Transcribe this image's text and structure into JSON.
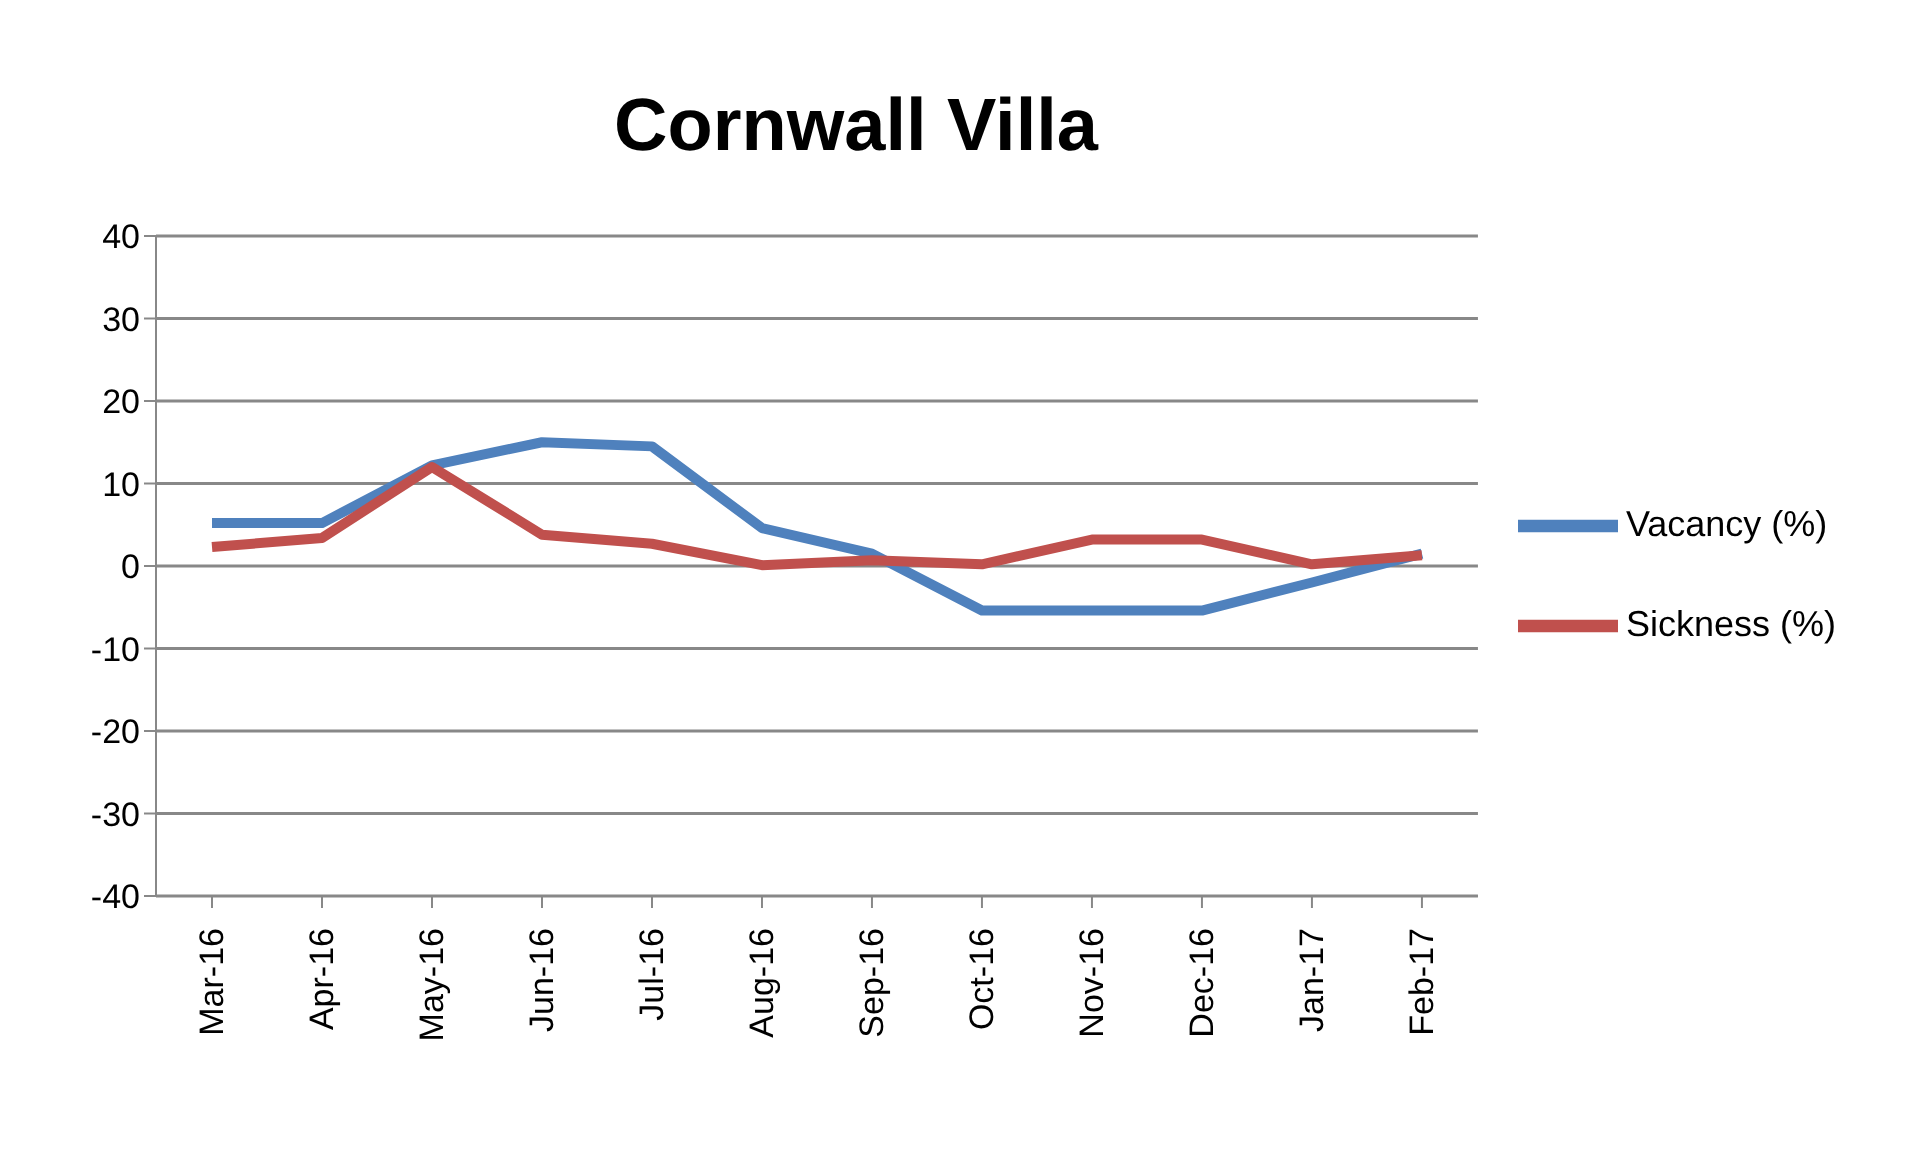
{
  "chart_data": {
    "type": "line",
    "title": "Cornwall Villa",
    "categories": [
      "Mar-16",
      "Apr-16",
      "May-16",
      "Jun-16",
      "Jul-16",
      "Aug-16",
      "Sep-16",
      "Oct-16",
      "Nov-16",
      "Dec-16",
      "Jan-17",
      "Feb-17"
    ],
    "series": [
      {
        "name": "Vacancy (%)",
        "color": "#4f81bd",
        "values": [
          5.2,
          5.2,
          12.2,
          15,
          14.5,
          4.6,
          1.5,
          -5.4,
          -5.4,
          -5.4,
          -2,
          1.5
        ]
      },
      {
        "name": "Sickness (%)",
        "color": "#c0504d",
        "values": [
          2.3,
          3.4,
          12,
          3.8,
          2.7,
          0.1,
          0.7,
          0.2,
          3.2,
          3.2,
          0.2,
          1.3
        ]
      }
    ],
    "ylim": [
      -40,
      40
    ],
    "yticks": [
      -40,
      -30,
      -20,
      -10,
      0,
      10,
      20,
      30,
      40
    ],
    "grid": "y",
    "legend": "right",
    "marker": "none",
    "line_style": "solid"
  }
}
